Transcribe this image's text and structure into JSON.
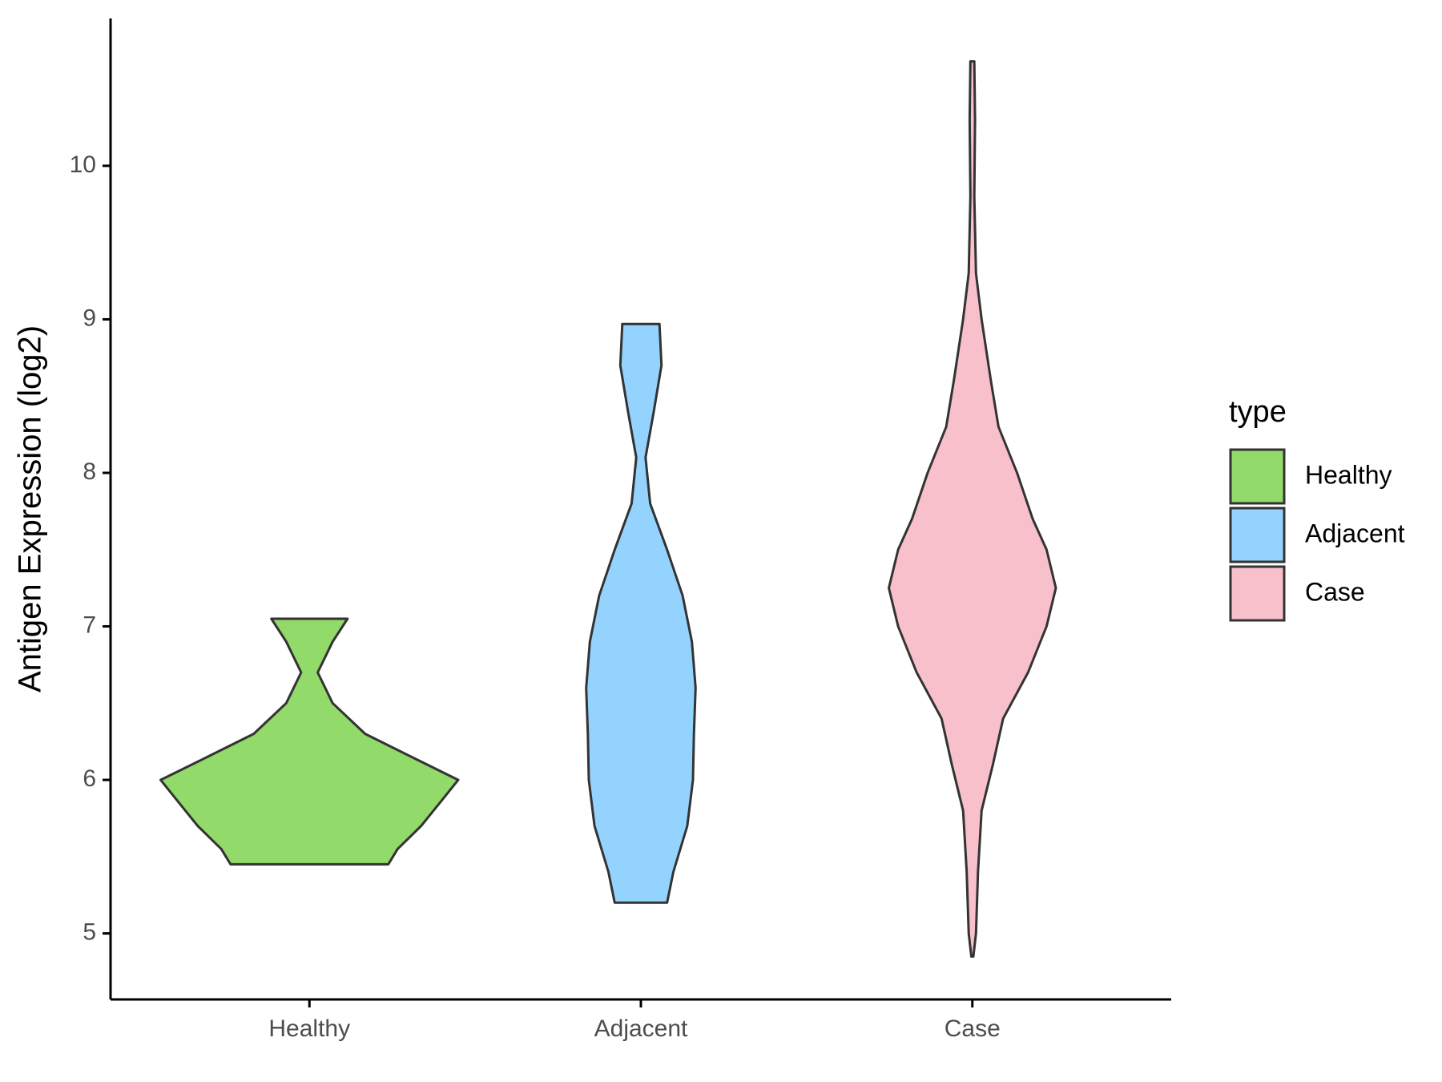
{
  "chart_data": {
    "type": "violin",
    "y_label": "Antigen Expression (log2)",
    "categories": [
      "Healthy",
      "Adjacent",
      "Case"
    ],
    "legend_title": "type",
    "legend_position": "right",
    "ylim": [
      4.57,
      10.96
    ],
    "yticks": [
      5,
      6,
      7,
      8,
      9,
      10
    ],
    "series": [
      {
        "name": "Healthy",
        "color": "#92da6a",
        "y": [
          7.05,
          6.9,
          6.7,
          6.5,
          6.3,
          6.15,
          6.0,
          5.85,
          5.7,
          5.55,
          5.45
        ],
        "widths": [
          0.115,
          0.07,
          0.025,
          0.07,
          0.168,
          0.308,
          0.449,
          0.393,
          0.337,
          0.266,
          0.238
        ]
      },
      {
        "name": "Adjacent",
        "color": "#93d3fe",
        "y": [
          8.97,
          8.7,
          8.4,
          8.1,
          7.8,
          7.5,
          7.2,
          6.9,
          6.6,
          6.3,
          6.0,
          5.7,
          5.4,
          5.2
        ],
        "widths": [
          0.056,
          0.062,
          0.039,
          0.014,
          0.028,
          0.079,
          0.126,
          0.154,
          0.165,
          0.16,
          0.157,
          0.14,
          0.098,
          0.079
        ]
      },
      {
        "name": "Case",
        "color": "#f7c0cb",
        "y": [
          10.68,
          10.3,
          9.8,
          9.3,
          9.0,
          8.6,
          8.3,
          8.0,
          7.7,
          7.5,
          7.25,
          7.0,
          6.7,
          6.4,
          6.1,
          5.8,
          5.4,
          5.0,
          4.85
        ],
        "widths": [
          0.006,
          0.008,
          0.006,
          0.011,
          0.028,
          0.056,
          0.079,
          0.135,
          0.182,
          0.224,
          0.252,
          0.224,
          0.168,
          0.093,
          0.062,
          0.028,
          0.017,
          0.011,
          0.003
        ]
      }
    ]
  }
}
